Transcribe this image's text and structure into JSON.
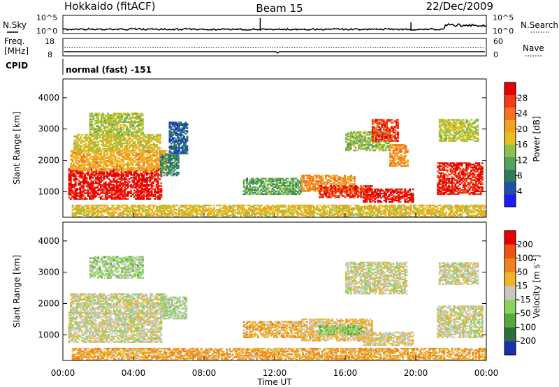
{
  "header": {
    "station": "Hokkaido (fitACF)",
    "beam": "Beam 15",
    "date": "22/Dec/2009"
  },
  "noise_panel": {
    "left_label": "N.Sky",
    "right_label": "N.Search",
    "ticks_left": [
      "10^5",
      "10^0"
    ],
    "ticks_right": [
      "10^5",
      "10^0"
    ]
  },
  "freq_panel": {
    "left_label_line1": "Freq.",
    "left_label_line2": "[MHz]",
    "right_label": "Nave",
    "ticks_left": [
      "18",
      "8"
    ],
    "ticks_right": [
      "60",
      "0"
    ]
  },
  "cpid": {
    "label": "CPID",
    "value": "normal (fast) -151"
  },
  "colors": {
    "power_scale": [
      "#1a1aff",
      "#1f4fa8",
      "#2e7d5a",
      "#55a05a",
      "#8cc24a",
      "#e6c020",
      "#f5a020",
      "#f57020",
      "#f03c14",
      "#e60000"
    ],
    "velocity_scale": [
      "#1a2fb0",
      "#2e6e3a",
      "#55a83c",
      "#8cd25a",
      "#c8c8c0",
      "#f0b428",
      "#f08020",
      "#f05014",
      "#e60000"
    ]
  },
  "chart_data": [
    {
      "type": "heatmap",
      "name": "power",
      "ylabel": "Slant Range [km]",
      "ylim": [
        180,
        4600
      ],
      "yticks": [
        "1000",
        "2000",
        "3000",
        "4000"
      ],
      "xlim": [
        0,
        24
      ],
      "xticks": [
        "00:00",
        "04:00",
        "08:00",
        "12:00",
        "16:00",
        "20:00",
        "00:00"
      ],
      "colorbar": {
        "label": "Power [dB]",
        "range": [
          0,
          32
        ],
        "ticks": [
          "4",
          "8",
          "12",
          "16",
          "20",
          "24",
          "28"
        ]
      },
      "regions": [
        {
          "t0": 0.3,
          "t1": 5.6,
          "r0": 750,
          "r1": 1700,
          "value": 30
        },
        {
          "t0": 0.4,
          "t1": 5.8,
          "r0": 1650,
          "r1": 2300,
          "value": 20
        },
        {
          "t0": 0.6,
          "t1": 5.5,
          "r0": 2300,
          "r1": 2800,
          "value": 17
        },
        {
          "t0": 1.5,
          "t1": 4.5,
          "r0": 2800,
          "r1": 3500,
          "value": 15
        },
        {
          "t0": 5.5,
          "t1": 6.5,
          "r0": 1500,
          "r1": 2200,
          "value": 9
        },
        {
          "t0": 6.0,
          "t1": 7.0,
          "r0": 2200,
          "r1": 3200,
          "value": 6
        },
        {
          "t0": 10.2,
          "t1": 13.5,
          "r0": 900,
          "r1": 1400,
          "value": 12
        },
        {
          "t0": 13.5,
          "t1": 16.5,
          "r0": 1000,
          "r1": 1500,
          "value": 22
        },
        {
          "t0": 14.5,
          "t1": 17.5,
          "r0": 800,
          "r1": 1200,
          "value": 28
        },
        {
          "t0": 17.0,
          "t1": 19.8,
          "r0": 650,
          "r1": 1100,
          "value": 30
        },
        {
          "t0": 16.0,
          "t1": 18.5,
          "r0": 2300,
          "r1": 2900,
          "value": 14
        },
        {
          "t0": 17.5,
          "t1": 19.0,
          "r0": 2600,
          "r1": 3300,
          "value": 27
        },
        {
          "t0": 18.5,
          "t1": 19.5,
          "r0": 1800,
          "r1": 2500,
          "value": 22
        },
        {
          "t0": 21.2,
          "t1": 23.8,
          "r0": 900,
          "r1": 1900,
          "value": 29
        },
        {
          "t0": 21.3,
          "t1": 23.5,
          "r0": 2600,
          "r1": 3300,
          "value": 16
        },
        {
          "t0": 0.5,
          "t1": 23.9,
          "r0": 180,
          "r1": 550,
          "value": 18
        }
      ]
    },
    {
      "type": "heatmap",
      "name": "velocity",
      "ylabel": "Slant Range [km]",
      "ylim": [
        180,
        4600
      ],
      "yticks": [
        "1000",
        "2000",
        "3000",
        "4000"
      ],
      "xlim": [
        0,
        24
      ],
      "xticks": [
        "00:00",
        "04:00",
        "08:00",
        "12:00",
        "16:00",
        "20:00",
        "00:00"
      ],
      "xlabel": "Time UT",
      "colorbar": {
        "label": "Velocity [m s^-1]",
        "range": [
          -250,
          250
        ],
        "ticks": [
          "200",
          "100",
          "50",
          "15",
          "-15",
          "-50",
          "-100",
          "-200"
        ]
      },
      "regions": [
        {
          "t0": 0.3,
          "t1": 5.6,
          "r0": 750,
          "r1": 1700,
          "value": 0
        },
        {
          "t0": 0.4,
          "t1": 5.8,
          "r0": 1650,
          "r1": 2300,
          "value": 0
        },
        {
          "t0": 1.5,
          "t1": 4.5,
          "r0": 2800,
          "r1": 3500,
          "value": -40
        },
        {
          "t0": 5.5,
          "t1": 7.0,
          "r0": 1500,
          "r1": 2200,
          "value": -30
        },
        {
          "t0": 10.2,
          "t1": 13.5,
          "r0": 900,
          "r1": 1400,
          "value": 60
        },
        {
          "t0": 13.5,
          "t1": 17.5,
          "r0": 800,
          "r1": 1500,
          "value": 40
        },
        {
          "t0": 14.5,
          "t1": 17.0,
          "r0": 1000,
          "r1": 1300,
          "value": -60
        },
        {
          "t0": 17.0,
          "t1": 19.8,
          "r0": 650,
          "r1": 1100,
          "value": 20
        },
        {
          "t0": 16.0,
          "t1": 19.5,
          "r0": 2300,
          "r1": 3300,
          "value": 0
        },
        {
          "t0": 21.2,
          "t1": 23.8,
          "r0": 900,
          "r1": 1900,
          "value": 0
        },
        {
          "t0": 21.3,
          "t1": 23.5,
          "r0": 2600,
          "r1": 3300,
          "value": 0
        },
        {
          "t0": 0.5,
          "t1": 23.9,
          "r0": 180,
          "r1": 550,
          "value": 70
        }
      ]
    }
  ]
}
